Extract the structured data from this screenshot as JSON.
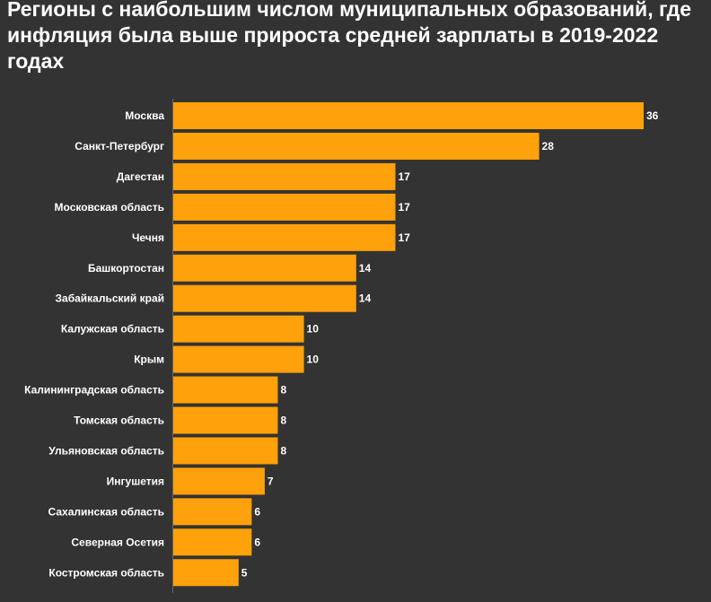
{
  "chart_data": {
    "type": "bar",
    "orientation": "horizontal",
    "title": "Регионы с наибольшим числом муниципальных образований, где инфляция была выше прироста средней зарплаты в 2019-2022 годах",
    "xlabel": "",
    "ylabel": "",
    "xlim": [
      0,
      36
    ],
    "grid": false,
    "bar_color": "#FFA10A",
    "categories": [
      "Москва",
      "Санкт-Петербург",
      "Дагестан",
      "Московская область",
      "Чечня",
      "Башкортостан",
      "Забайкальский край",
      "Калужская область",
      "Крым",
      "Калининградская область",
      "Томская область",
      "Ульяновская область",
      "Ингушетия",
      "Сахалинская область",
      "Северная Осетия",
      "Костромская область"
    ],
    "values": [
      36,
      28,
      17,
      17,
      17,
      14,
      14,
      10,
      10,
      8,
      8,
      8,
      7,
      6,
      6,
      5
    ]
  }
}
